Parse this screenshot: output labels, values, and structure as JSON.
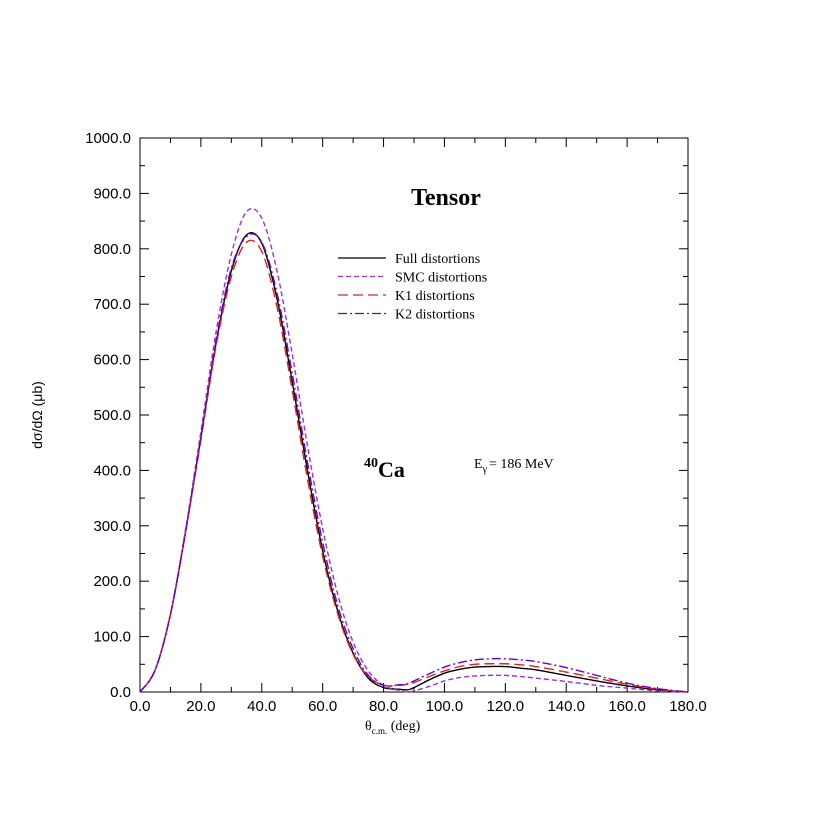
{
  "chart_data": {
    "type": "line",
    "title": "Tensor",
    "nucleus": {
      "mass": "40",
      "symbol": "Ca"
    },
    "energy": {
      "prefix": "E",
      "sub": "γ",
      "rest": "= 186 MeV"
    },
    "xlabel": {
      "main": "θ",
      "sub": "c.m.",
      "rest": " (deg)"
    },
    "ylabel": "dσ/dΩ (μb)",
    "xlim": [
      0,
      180
    ],
    "ylim": [
      0,
      1000
    ],
    "xticks": [
      0,
      20,
      40,
      60,
      80,
      100,
      120,
      140,
      160,
      180
    ],
    "yticks": [
      0,
      100,
      200,
      300,
      400,
      500,
      600,
      700,
      800,
      900,
      1000
    ],
    "xtick_labels": [
      "0.0",
      "20.0",
      "40.0",
      "60.0",
      "80.0",
      "100.0",
      "120.0",
      "140.0",
      "160.0",
      "180.0"
    ],
    "ytick_labels": [
      "0.0",
      "100.0",
      "200.0",
      "300.0",
      "400.0",
      "500.0",
      "600.0",
      "700.0",
      "800.0",
      "900.0",
      "1000.0"
    ],
    "legend_position": "upper-right",
    "series": [
      {
        "name": "Full distortions",
        "color": "#000000",
        "dash": "solid",
        "x": [
          0,
          5,
          10,
          15,
          20,
          25,
          30,
          35,
          40,
          45,
          50,
          55,
          60,
          65,
          70,
          75,
          80,
          85,
          88,
          90,
          95,
          100,
          105,
          110,
          115,
          120,
          125,
          130,
          140,
          150,
          160,
          170,
          180
        ],
        "y": [
          0,
          40,
          140,
          290,
          460,
          630,
          760,
          825,
          810,
          710,
          560,
          400,
          255,
          145,
          70,
          25,
          8,
          5,
          4,
          8,
          22,
          34,
          41,
          45,
          46,
          46,
          43,
          40,
          30,
          20,
          11,
          4,
          0
        ]
      },
      {
        "name": "SMC distortions",
        "color": "#9933cc",
        "dash": "short-dash",
        "x": [
          0,
          5,
          10,
          15,
          20,
          25,
          30,
          35,
          40,
          45,
          50,
          55,
          60,
          65,
          70,
          75,
          80,
          85,
          88,
          90,
          95,
          100,
          105,
          110,
          115,
          120,
          125,
          130,
          140,
          150,
          160,
          170,
          180
        ],
        "y": [
          0,
          40,
          140,
          295,
          470,
          650,
          790,
          867,
          855,
          760,
          610,
          445,
          295,
          175,
          90,
          38,
          12,
          3,
          0,
          2,
          10,
          20,
          26,
          29,
          30,
          30,
          28,
          25,
          19,
          12,
          7,
          2,
          0
        ]
      },
      {
        "name": "K1 distortions",
        "color": "#dd2222",
        "dash": "long-dash",
        "x": [
          0,
          5,
          10,
          15,
          20,
          25,
          30,
          35,
          40,
          45,
          50,
          55,
          60,
          65,
          70,
          75,
          80,
          85,
          88,
          90,
          95,
          100,
          105,
          110,
          115,
          120,
          125,
          130,
          140,
          150,
          160,
          170,
          180
        ],
        "y": [
          0,
          40,
          140,
          290,
          455,
          625,
          750,
          812,
          795,
          695,
          545,
          385,
          245,
          140,
          68,
          28,
          12,
          12,
          14,
          17,
          28,
          38,
          46,
          50,
          51,
          51,
          49,
          46,
          36,
          25,
          14,
          5,
          0
        ]
      },
      {
        "name": "K2 distortions",
        "color": "#6600cc",
        "dash": "dash-dot",
        "x": [
          0,
          5,
          10,
          15,
          20,
          25,
          30,
          35,
          40,
          45,
          50,
          55,
          60,
          65,
          70,
          75,
          80,
          85,
          88,
          90,
          95,
          100,
          105,
          110,
          115,
          120,
          125,
          130,
          140,
          150,
          160,
          170,
          180
        ],
        "y": [
          0,
          40,
          140,
          290,
          460,
          635,
          765,
          822,
          812,
          720,
          575,
          415,
          270,
          155,
          78,
          30,
          12,
          13,
          15,
          20,
          33,
          45,
          53,
          58,
          60,
          60,
          58,
          55,
          44,
          30,
          16,
          6,
          0
        ]
      }
    ]
  }
}
